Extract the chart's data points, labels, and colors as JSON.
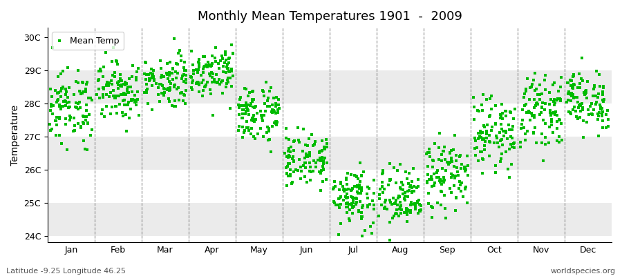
{
  "title": "Monthly Mean Temperatures 1901  -  2009",
  "ylabel": "Temperature",
  "xlabel_bottom_left": "Latitude -9.25 Longitude 46.25",
  "xlabel_bottom_right": "worldspecies.org",
  "legend_label": "Mean Temp",
  "marker_color": "#00bb00",
  "marker_size": 3,
  "bg_bands": [
    {
      "ymin": 29,
      "ymax": 30,
      "color": "#ffffff"
    },
    {
      "ymin": 28,
      "ymax": 29,
      "color": "#ebebeb"
    },
    {
      "ymin": 27,
      "ymax": 28,
      "color": "#ffffff"
    },
    {
      "ymin": 26,
      "ymax": 27,
      "color": "#ebebeb"
    },
    {
      "ymin": 25,
      "ymax": 26,
      "color": "#ffffff"
    },
    {
      "ymin": 24,
      "ymax": 25,
      "color": "#ebebeb"
    }
  ],
  "ylim_min": 23.8,
  "ylim_max": 30.3,
  "ytick_labels": [
    "24C",
    "25C",
    "26C",
    "27C",
    "28C",
    "29C",
    "30C"
  ],
  "ytick_values": [
    24,
    25,
    26,
    27,
    28,
    29,
    30
  ],
  "months": [
    "Jan",
    "Feb",
    "Mar",
    "Apr",
    "May",
    "Jun",
    "Jul",
    "Aug",
    "Sep",
    "Oct",
    "Nov",
    "Dec"
  ],
  "n_years": 109,
  "mean_by_month": [
    27.9,
    28.4,
    28.7,
    29.0,
    27.7,
    26.3,
    25.2,
    25.1,
    25.8,
    27.1,
    27.8,
    28.1
  ],
  "std_by_month": [
    0.55,
    0.45,
    0.4,
    0.38,
    0.45,
    0.4,
    0.5,
    0.48,
    0.55,
    0.52,
    0.5,
    0.45
  ]
}
